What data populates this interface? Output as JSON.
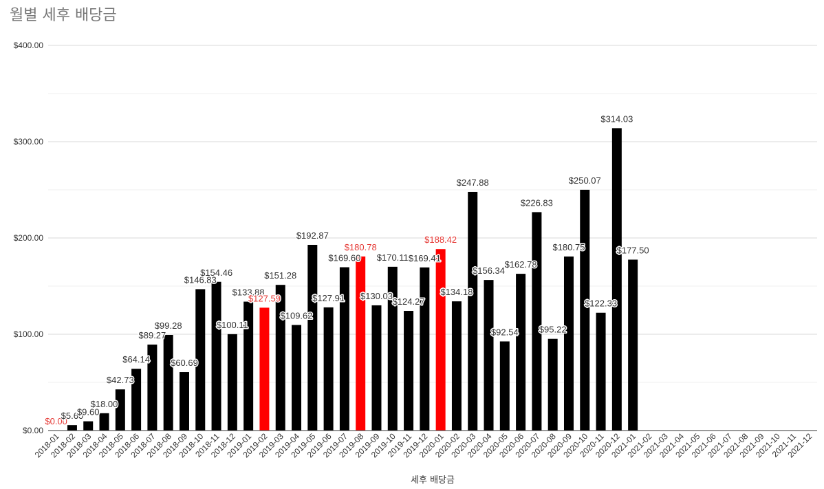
{
  "chart_data": {
    "type": "bar",
    "title": "월별 세후 배당금",
    "xlabel": "세후 배당금",
    "ylabel": "",
    "ylim": [
      0,
      400
    ],
    "yticks": [
      0,
      100,
      200,
      300,
      400
    ],
    "ytick_labels": [
      "$0.00",
      "$100.00",
      "$200.00",
      "$300.00",
      "$400.00"
    ],
    "grid": true,
    "legend": "none",
    "colors": {
      "default": "#000000",
      "highlight": "#ff0000",
      "highlight_label": "#e53935",
      "label": "#333333"
    },
    "categories": [
      "2018-01",
      "2018-02",
      "2018-03",
      "2018-04",
      "2018-05",
      "2018-06",
      "2018-07",
      "2018-08",
      "2018-09",
      "2018-10",
      "2018-11",
      "2018-12",
      "2019-01",
      "2019-02",
      "2019-03",
      "2019-04",
      "2019-05",
      "2019-06",
      "2019-07",
      "2019-08",
      "2019-09",
      "2019-10",
      "2019-11",
      "2019-12",
      "2020-01",
      "2020-02",
      "2020-03",
      "2020-04",
      "2020-05",
      "2020-06",
      "2020-07",
      "2020-08",
      "2020-09",
      "2020-10",
      "2020-11",
      "2020-12",
      "2021-01",
      "2021-02",
      "2021-03",
      "2021-04",
      "2021-05",
      "2021-06",
      "2021-07",
      "2021-08",
      "2021-09",
      "2021-10",
      "2021-11",
      "2021-12"
    ],
    "values": [
      0.0,
      5.6,
      9.6,
      18.0,
      42.73,
      64.14,
      89.27,
      99.28,
      60.69,
      146.83,
      154.46,
      100.11,
      133.88,
      127.59,
      151.28,
      109.62,
      192.87,
      127.91,
      169.6,
      180.78,
      130.03,
      170.11,
      124.27,
      169.41,
      188.42,
      134.18,
      247.88,
      156.34,
      92.54,
      162.78,
      226.83,
      95.22,
      180.75,
      250.07,
      122.33,
      314.03,
      177.5,
      null,
      null,
      null,
      null,
      null,
      null,
      null,
      null,
      null,
      null,
      null
    ],
    "data_labels": [
      "$0.00",
      "$5.60",
      "$9.60",
      "$18.00",
      "$42.73",
      "$64.14",
      "$89.27",
      "$99.28",
      "$60.69",
      "$146.83",
      "$154.46",
      "$100.11",
      "$133.88",
      "$127.59",
      "$151.28",
      "$109.62",
      "$192.87",
      "$127.91",
      "$169.60",
      "$180.78",
      "$130.03",
      "$170.11",
      "$124.27",
      "$169.41",
      "$188.42",
      "$134.18",
      "$247.88",
      "$156.34",
      "$92.54",
      "$162.78",
      "$226.83",
      "$95.22",
      "$180.75",
      "$250.07",
      "$122.33",
      "$314.03",
      "$177.50",
      "",
      "",
      "",
      "",
      "",
      "",
      "",
      "",
      "",
      "",
      ""
    ],
    "highlighted": [
      "2018-01",
      "2019-02",
      "2019-08",
      "2020-01"
    ]
  }
}
